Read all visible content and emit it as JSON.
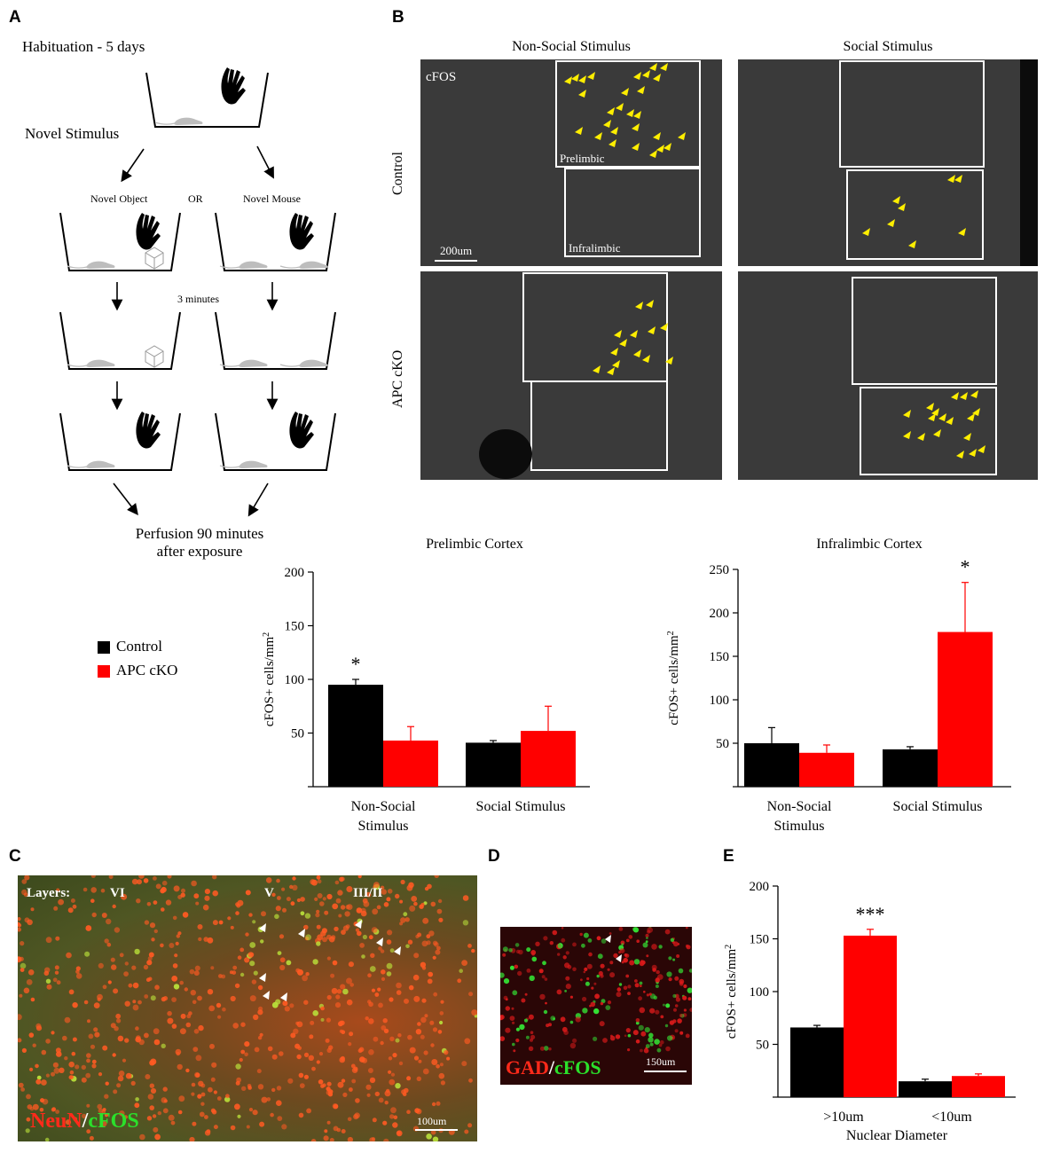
{
  "panels": {
    "a": "A",
    "b": "B",
    "c": "C",
    "d": "D",
    "e": "E"
  },
  "panelA": {
    "habituation": "Habituation - 5 days",
    "novel_stimulus": "Novel Stimulus",
    "novel_object": "Novel Object",
    "or": "OR",
    "novel_mouse": "Novel Mouse",
    "three_minutes": "3 minutes",
    "perfusion_line1": "Perfusion 90 minutes",
    "perfusion_line2": "after exposure"
  },
  "panelB": {
    "col_nonsocial": "Non-Social Stimulus",
    "col_social": "Social Stimulus",
    "row_control": "Control",
    "row_apc": "APC cKO",
    "cfos_label": "cFOS",
    "prelimbic_label": "Prelimbic",
    "infralimbic_label": "Infralimbic",
    "scale_bar": "200um"
  },
  "legend": {
    "items": [
      {
        "label": "Control",
        "color": "#000000"
      },
      {
        "label": "APC cKO",
        "color": "#ff0000"
      }
    ]
  },
  "colors": {
    "control": "#000000",
    "apc": "#ff0000"
  },
  "panelC": {
    "layers": "Layers:",
    "vi": "VI",
    "v": "V",
    "iii_ii": "III/II",
    "neun": "NeuN",
    "slash": "/",
    "cfos": "cFOS",
    "scale": "100um"
  },
  "panelD": {
    "gad": "GAD",
    "slash": "/",
    "cfos": "cFOS",
    "scale": "150um"
  },
  "chart_data": [
    {
      "type": "bar",
      "title": "Prelimbic Cortex",
      "ylabel": "cFOS+ cells/mm²",
      "ylim": [
        0,
        200
      ],
      "yticks": [
        50,
        100,
        150,
        200
      ],
      "categories": [
        "Non-Social Stimulus",
        "Social Stimulus"
      ],
      "category_lines": [
        [
          "Non-Social",
          "Stimulus"
        ],
        [
          "Social Stimulus"
        ]
      ],
      "series": [
        {
          "name": "Control",
          "values": [
            95,
            41
          ],
          "errors": [
            5,
            2
          ]
        },
        {
          "name": "APC cKO",
          "values": [
            43,
            52
          ],
          "errors": [
            13,
            23
          ]
        }
      ],
      "annotations": [
        {
          "text": "*",
          "category": 0,
          "series": 0
        }
      ]
    },
    {
      "type": "bar",
      "title": "Infralimbic Cortex",
      "ylabel": "cFOS+ cells/mm²",
      "ylim": [
        0,
        250
      ],
      "yticks": [
        50,
        100,
        150,
        200,
        250
      ],
      "categories": [
        "Non-Social Stimulus",
        "Social Stimulus"
      ],
      "category_lines": [
        [
          "Non-Social",
          "Stimulus"
        ],
        [
          "Social Stimulus"
        ]
      ],
      "series": [
        {
          "name": "Control",
          "values": [
            50,
            43
          ],
          "errors": [
            18,
            3
          ]
        },
        {
          "name": "APC cKO",
          "values": [
            39,
            178
          ],
          "errors": [
            9,
            57
          ]
        }
      ],
      "annotations": [
        {
          "text": "*",
          "category": 1,
          "series": 1
        }
      ]
    },
    {
      "type": "bar",
      "title": "",
      "ylabel": "cFOS+ cells/mm²",
      "xlabel": "Nuclear Diameter",
      "ylim": [
        0,
        200
      ],
      "yticks": [
        50,
        100,
        150,
        200
      ],
      "categories": [
        ">10um",
        "<10um"
      ],
      "category_lines": [
        [
          ">10um"
        ],
        [
          "<10um"
        ]
      ],
      "series": [
        {
          "name": "Control",
          "values": [
            66,
            15
          ],
          "errors": [
            2,
            2
          ]
        },
        {
          "name": "APC cKO",
          "values": [
            153,
            20
          ],
          "errors": [
            6,
            2
          ]
        }
      ],
      "annotations": [
        {
          "text": "***",
          "category": 0,
          "series": 1
        }
      ]
    }
  ]
}
